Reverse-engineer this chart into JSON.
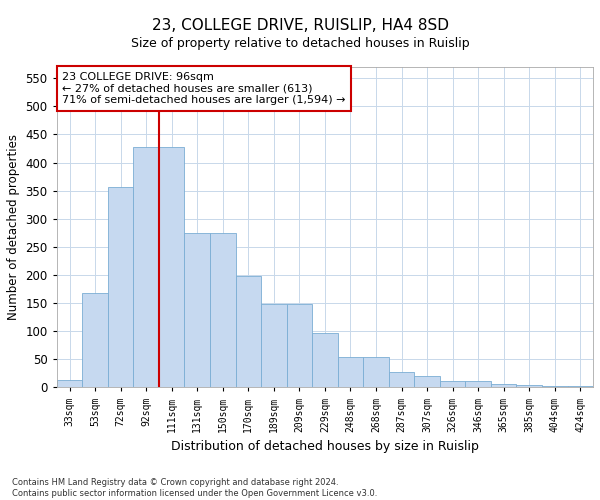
{
  "title_line1": "23, COLLEGE DRIVE, RUISLIP, HA4 8SD",
  "title_line2": "Size of property relative to detached houses in Ruislip",
  "xlabel": "Distribution of detached houses by size in Ruislip",
  "ylabel": "Number of detached properties",
  "footnote": "Contains HM Land Registry data © Crown copyright and database right 2024.\nContains public sector information licensed under the Open Government Licence v3.0.",
  "categories": [
    "33sqm",
    "53sqm",
    "72sqm",
    "92sqm",
    "111sqm",
    "131sqm",
    "150sqm",
    "170sqm",
    "189sqm",
    "209sqm",
    "229sqm",
    "248sqm",
    "268sqm",
    "287sqm",
    "307sqm",
    "326sqm",
    "346sqm",
    "365sqm",
    "385sqm",
    "404sqm",
    "424sqm"
  ],
  "values": [
    13,
    168,
    357,
    428,
    428,
    275,
    275,
    198,
    148,
    148,
    96,
    55,
    55,
    27,
    20,
    12,
    12,
    7,
    5,
    3,
    3
  ],
  "bar_color": "#c6d9f0",
  "bar_edge_color": "#7aadd4",
  "vline_x": 3.5,
  "vline_color": "#cc0000",
  "annotation_text": "23 COLLEGE DRIVE: 96sqm\n← 27% of detached houses are smaller (613)\n71% of semi-detached houses are larger (1,594) →",
  "annotation_box_color": "#ffffff",
  "annotation_box_edge": "#cc0000",
  "ylim": [
    0,
    570
  ],
  "yticks": [
    0,
    50,
    100,
    150,
    200,
    250,
    300,
    350,
    400,
    450,
    500,
    550
  ],
  "background_color": "#ffffff",
  "grid_color": "#c8d8ea"
}
